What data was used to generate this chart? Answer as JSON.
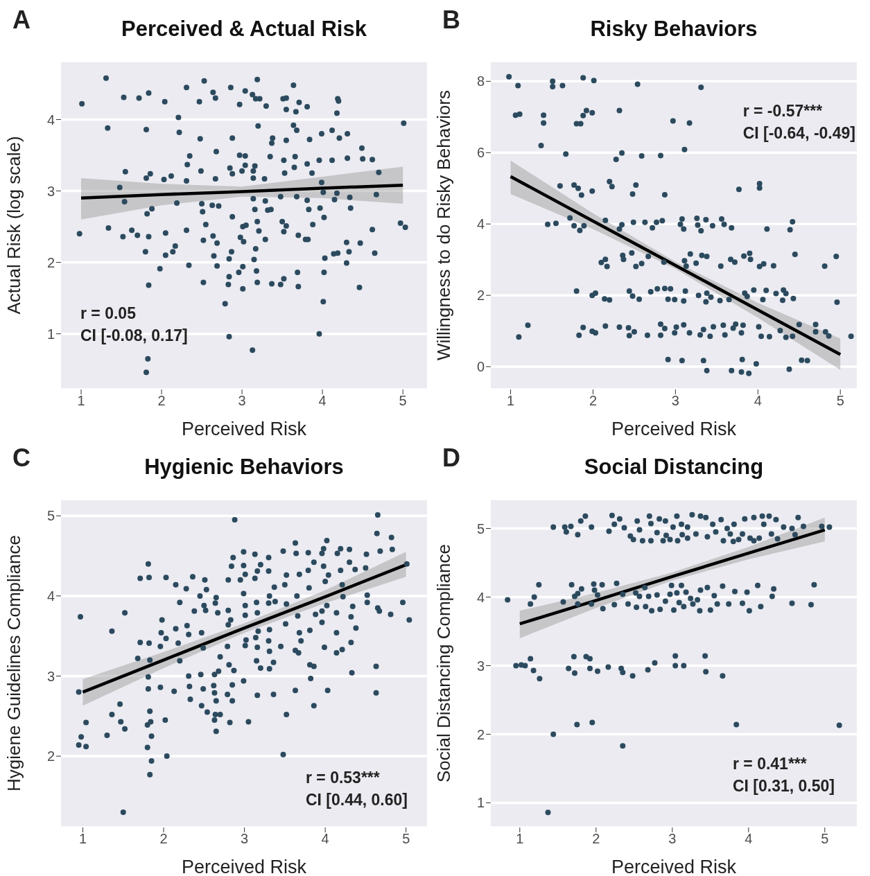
{
  "chart_data": [
    {
      "type": "scatter",
      "title": "Perceived & Actual Risk",
      "xlabel": "Perceived Risk",
      "ylabel": "Actual Risk (log scale)",
      "annotations": [
        "A",
        "r = 0.05",
        "CI [-0.08, 0.17]"
      ],
      "xlim": [
        0.75,
        5.3
      ],
      "xticks": [
        1,
        2,
        3,
        4,
        5
      ],
      "ylim": [
        0.22,
        4.82
      ],
      "yticks": [
        1,
        2,
        3,
        4
      ],
      "grid": "y",
      "series": [
        {
          "marker": "circle",
          "color": "#2c4a5e",
          "x": [
            1.01,
            0.98,
            1.31,
            1.33,
            1.34,
            1.53,
            1.55,
            1.54,
            1.48,
            1.63,
            1.72,
            1.7,
            1.52,
            1.81,
            1.84,
            1.81,
            1.86,
            1.82,
            1.84,
            1.8,
            1.84,
            1.83,
            1.81,
            1.88,
            2.04,
            2.03,
            2.05,
            2.05,
            1.98,
            2.12,
            2.14,
            2.17,
            2.21,
            2.22,
            2.19,
            2.31,
            2.32,
            2.35,
            2.31,
            2.31,
            2.34,
            2.47,
            2.48,
            2.49,
            2.5,
            2.51,
            2.52,
            2.55,
            2.52,
            2.53,
            2.64,
            2.67,
            2.68,
            2.67,
            2.63,
            2.71,
            2.64,
            2.69,
            2.65,
            2.69,
            2.79,
            2.84,
            2.86,
            2.88,
            2.85,
            2.88,
            2.88,
            2.87,
            2.84,
            2.84,
            2.83,
            2.97,
            2.97,
            3.04,
            3.04,
            3.04,
            3.0,
            3.01,
            3.05,
            2.98,
            3.02,
            3.01,
            2.96,
            3.01,
            3.13,
            3.19,
            3.17,
            3.22,
            3.2,
            3.14,
            3.14,
            3.16,
            3.14,
            3.16,
            3.19,
            3.21,
            3.17,
            3.15,
            3.18,
            3.19,
            3.13,
            3.3,
            3.38,
            3.37,
            3.35,
            3.28,
            3.29,
            3.32,
            3.36,
            3.29,
            3.37,
            3.51,
            3.55,
            3.55,
            3.55,
            3.52,
            3.53,
            3.48,
            3.5,
            3.55,
            3.52,
            3.52,
            3.48,
            3.64,
            3.64,
            3.67,
            3.68,
            3.66,
            3.65,
            3.68,
            3.7,
            3.69,
            3.7,
            3.71,
            3.81,
            3.84,
            3.81,
            3.87,
            3.81,
            3.83,
            3.88,
            3.79,
            3.82,
            3.99,
            3.96,
            3.97,
            3.99,
            4.02,
            4.01,
            4.03,
            4.02,
            4.01,
            3.96,
            4.18,
            4.19,
            4.2,
            4.12,
            4.21,
            4.12,
            4.18,
            4.15,
            4.14,
            4.19,
            4.31,
            4.31,
            4.35,
            4.34,
            4.3,
            4.33,
            4.3,
            4.49,
            4.5,
            4.47,
            4.46,
            4.62,
            4.67,
            4.62,
            4.65,
            4.7,
            5.01,
            4.97,
            5.03
          ],
          "values": [
            4.22,
            2.4,
            4.58,
            3.88,
            2.48,
            4.31,
            3.27,
            2.85,
            3.05,
            2.45,
            4.3,
            2.38,
            2.36,
            3.86,
            4.37,
            3.18,
            3.24,
            2.68,
            2.36,
            2.15,
            1.68,
            0.65,
            0.46,
            2.75,
            4.25,
            3.16,
            2.41,
            2.1,
            1.91,
            3.21,
            2.15,
            2.23,
            4.03,
            3.82,
            2.83,
            4.45,
            3.37,
            3.49,
            3.14,
            2.45,
            1.96,
            4.25,
            3.73,
            3.28,
            2.82,
            2.71,
            2.31,
            2.53,
            1.72,
            4.54,
            4.38,
            4.3,
            3.55,
            3.17,
            2.8,
            2.79,
            2.37,
            2.27,
            2.09,
            1.95,
            1.42,
            0.96,
            4.45,
            3.74,
            3.32,
            3.24,
            2.64,
            2.15,
            2.05,
            1.8,
            1.69,
            4.21,
            3.5,
            4.4,
            3.49,
            3.36,
            3.28,
            2.5,
            2.52,
            2.35,
            2.29,
            1.94,
            1.86,
            1.63,
            4.35,
            4.56,
            4.29,
            4.29,
            3.91,
            3.28,
            3.18,
            3.35,
            2.89,
            2.74,
            2.57,
            2.44,
            2.19,
            2.04,
            1.88,
            1.72,
            0.77,
            4.19,
            3.74,
            3.67,
            3.48,
            3.17,
            2.86,
            2.73,
            2.74,
            2.32,
            1.7,
            4.29,
            4.3,
            4.14,
            3.71,
            3.43,
            3.25,
            2.92,
            2.57,
            2.51,
            2.43,
            1.77,
            1.69,
            4.48,
            3.92,
            4.11,
            3.85,
            3.48,
            3.33,
            2.92,
            2.38,
            1.86,
            1.66,
            4.24,
            4.18,
            3.72,
            3.38,
            3.25,
            2.87,
            2.74,
            2.53,
            2.32,
            2.32,
            3.8,
            3.43,
            2.76,
            3.12,
            2.63,
            2.98,
            2.06,
            1.86,
            1.45,
            1.0,
            4.09,
            4.29,
            4.26,
            3.85,
            3.74,
            3.43,
            2.97,
            2.88,
            2.12,
            2.13,
            3.8,
            3.46,
            2.76,
            2.91,
            2.28,
            2.15,
            1.99,
            3.6,
            3.45,
            2.27,
            1.65,
            3.44,
            2.95,
            2.46,
            2.13,
            3.26,
            3.95,
            2.55,
            2.49
          ]
        },
        {
          "type": "line",
          "color": "#000000",
          "x": [
            1,
            2,
            3,
            4,
            5
          ],
          "values": [
            2.9,
            2.95,
            2.99,
            3.04,
            3.08
          ],
          "lower": [
            2.6,
            2.8,
            2.92,
            2.9,
            2.82
          ],
          "upper": [
            3.18,
            3.1,
            3.06,
            3.2,
            3.34
          ]
        }
      ]
    },
    {
      "type": "scatter",
      "title": "Risky Behaviors",
      "xlabel": "Perceived Risk",
      "ylabel": "Willingness to do Risky Behaviors",
      "annotations": [
        "B",
        "r = -0.57***",
        "CI [-0.64, -0.49]"
      ],
      "xlim": [
        0.76,
        5.2
      ],
      "xticks": [
        1,
        2,
        3,
        4,
        5
      ],
      "ylim": [
        -0.64,
        8.57
      ],
      "yticks": [
        0,
        2,
        4,
        6,
        8
      ],
      "grid": "y",
      "series": [
        {
          "marker": "circle",
          "color": "#2c4a5e",
          "x": [
            0.98,
            1.09,
            1.06,
            1.11,
            1.1,
            1.21,
            1.37,
            1.4,
            1.4,
            1.51,
            1.51,
            1.63,
            1.67,
            1.6,
            1.45,
            1.55,
            1.72,
            1.77,
            1.84,
            1.89,
            1.77,
            1.82,
            1.86,
            1.8,
            1.85,
            1.88,
            1.92,
            1.88,
            2.01,
            1.99,
            1.99,
            1.8,
            1.88,
            1.83,
            1.99,
            2.03,
            1.99,
            2.03,
            2.15,
            2.1,
            2.15,
            2.17,
            2.14,
            2.2,
            2.2,
            2.23,
            2.15,
            2.28,
            2.35,
            2.32,
            2.32,
            2.35,
            2.32,
            2.36,
            2.37,
            2.44,
            2.43,
            2.44,
            2.48,
            2.52,
            2.49,
            2.54,
            2.59,
            2.47,
            2.52,
            2.48,
            2.56,
            2.5,
            2.63,
            2.67,
            2.59,
            2.66,
            2.72,
            2.77,
            2.84,
            2.7,
            2.78,
            2.87,
            2.82,
            2.87,
            2.86,
            2.91,
            2.82,
            2.87,
            2.82,
            2.91,
            2.97,
            2.94,
            2.99,
            3.01,
            2.99,
            3.06,
            3.08,
            3.1,
            3.11,
            3.17,
            3.11,
            3.13,
            3.12,
            3.1,
            3.1,
            3.17,
            3.08,
            3.26,
            3.27,
            3.31,
            3.37,
            3.45,
            3.18,
            3.25,
            3.31,
            3.32,
            3.38,
            3.28,
            3.37,
            3.38,
            3.34,
            3.3,
            3.42,
            3.34,
            3.38,
            3.56,
            3.59,
            3.68,
            3.55,
            3.67,
            3.72,
            3.83,
            3.9,
            3.91,
            3.43,
            3.54,
            3.65,
            3.84,
            3.87,
            3.46,
            3.58,
            3.6,
            3.7,
            3.73,
            3.8,
            3.82,
            3.68,
            3.8,
            3.81,
            3.89,
            3.77,
            4.02,
            4.02,
            3.95,
            4.06,
            4.1,
            4.02,
            4.07,
            4.19,
            4.11,
            3.98,
            4.01,
            4.04,
            4.14,
            4.22,
            4.31,
            4.3,
            4.43,
            4.34,
            4.42,
            4.39,
            4.45,
            4.38,
            4.27,
            4.34,
            4.42,
            4.5,
            4.53,
            4.6,
            4.7,
            4.7,
            4.81,
            4.82,
            4.86,
            4.95,
            4.96,
            5.13
          ],
          "values": [
            8.13,
            7.88,
            7.05,
            7.08,
            0.83,
            1.16,
            6.2,
            7.05,
            6.83,
            8.0,
            7.85,
            7.88,
            5.96,
            5.07,
            3.99,
            4.02,
            4.17,
            3.95,
            3.82,
            3.95,
            5.09,
            5.0,
            4.81,
            6.81,
            6.81,
            7.04,
            7.18,
            8.1,
            8.02,
            7.12,
            4.92,
            2.12,
            1.1,
            0.88,
            2.0,
            2.06,
            0.99,
            0.95,
            1.14,
            2.92,
            3.01,
            2.81,
            1.9,
            1.87,
            5.19,
            5.05,
            4.1,
            5.81,
            5.99,
            7.18,
            1.11,
            3.98,
            3.86,
            3.12,
            3.01,
            2.12,
            1.09,
            0.87,
            4.84,
            5.09,
            4.05,
            7.92,
            5.91,
            3.19,
            2.81,
            1.98,
            1.89,
            0.98,
            4.05,
            3.09,
            2.89,
            0.88,
            3.89,
            4.05,
            4.09,
            2.1,
            2.18,
            2.19,
            5.92,
            4.82,
            2.93,
            1.89,
            1.19,
            1.07,
            0.88,
            0.2,
            6.89,
            2.18,
            1.88,
            1.11,
            0.95,
            3.99,
            4.14,
            3.86,
            6.09,
            6.83,
            2.97,
            2.82,
            2.12,
            1.84,
            1.17,
            0.95,
            0.17,
            4.16,
            3.97,
            3.81,
            4.12,
            3.95,
            3.16,
            2.9,
            7.83,
            3.12,
            3.09,
            2.0,
            1.82,
            2.06,
            1.04,
            0.89,
            0.85,
            0.17,
            -0.11,
            4.14,
            3.99,
            3.89,
            2.82,
            3.01,
            2.93,
            3.1,
            3.18,
            3.01,
            1.95,
            1.85,
            1.88,
            2.06,
            1.97,
            1.12,
            1.16,
            0.89,
            1.08,
            1.19,
            0.95,
            1.16,
            -0.11,
            -0.15,
            0.2,
            -0.19,
            4.97,
            5.13,
            5.01,
            2.15,
            1.88,
            2.14,
            2.81,
            2.88,
            2.83,
            3.86,
            0.08,
            1.12,
            0.85,
            0.84,
            2.05,
            2.15,
            1.86,
            1.91,
            2.05,
            4.06,
            3.84,
            3.15,
            -0.07,
            1.01,
            0.82,
            0.85,
            1.18,
            0.18,
            0.17,
            1.18,
            0.98,
            2.82,
            0.98,
            0.86,
            3.09,
            1.81,
            0.85
          ]
        },
        {
          "type": "line",
          "color": "#000000",
          "x": [
            1,
            2,
            3,
            4,
            5
          ],
          "values": [
            5.33,
            4.08,
            2.84,
            1.59,
            0.34
          ],
          "lower": [
            4.84,
            3.86,
            2.74,
            1.37,
            -0.09
          ],
          "upper": [
            5.78,
            4.3,
            2.94,
            1.79,
            0.79
          ]
        }
      ]
    },
    {
      "type": "scatter",
      "title": "Hygienic Behaviors",
      "xlabel": "Perceived Risk",
      "ylabel": "Hygiene Guidelines Compliance",
      "annotations": [
        "C",
        "r = 0.53***",
        "CI [0.44, 0.60]"
      ],
      "xlim": [
        0.73,
        5.26
      ],
      "xticks": [
        1,
        2,
        3,
        4,
        5
      ],
      "ylim": [
        1.11,
        5.21
      ],
      "yticks": [
        2,
        3,
        4,
        5
      ],
      "grid": "y",
      "series": [
        {
          "marker": "circle",
          "color": "#2c4a5e",
          "x": [
            0.97,
            0.95,
            0.98,
            0.95,
            1.04,
            1.04,
            1.3,
            1.36,
            1.36,
            1.46,
            1.47,
            1.52,
            1.52,
            1.5,
            1.71,
            1.68,
            1.71,
            1.81,
            1.82,
            1.82,
            1.83,
            1.81,
            1.81,
            1.83,
            1.84,
            1.8,
            1.8,
            1.85,
            1.85,
            1.83,
            1.96,
            1.98,
            1.97,
            2.03,
            1.96,
            2.02,
            2.04,
            2.03,
            2.15,
            2.15,
            2.18,
            2.2,
            2.2,
            2.13,
            2.28,
            2.29,
            2.31,
            2.36,
            2.31,
            2.32,
            2.33,
            2.38,
            2.46,
            2.49,
            2.47,
            2.47,
            2.49,
            2.45,
            2.51,
            2.5,
            2.52,
            2.54,
            2.53,
            2.62,
            2.63,
            2.64,
            2.65,
            2.67,
            2.7,
            2.68,
            2.63,
            2.65,
            2.64,
            2.7,
            2.63,
            2.65,
            2.8,
            2.8,
            2.79,
            2.8,
            2.81,
            2.79,
            2.82,
            2.83,
            2.85,
            2.85,
            2.87,
            2.84,
            2.86,
            2.88,
            2.95,
            2.99,
            2.99,
            3.01,
            2.99,
            3.01,
            3.01,
            3.02,
            3.01,
            2.99,
            3.05,
            3.13,
            3.13,
            3.16,
            3.2,
            3.15,
            3.16,
            3.17,
            3.14,
            3.16,
            3.15,
            3.2,
            3.16,
            3.3,
            3.3,
            3.31,
            3.3,
            3.31,
            3.3,
            3.31,
            3.31,
            3.36,
            3.36,
            3.37,
            3.38,
            3.48,
            3.45,
            3.48,
            3.52,
            3.5,
            3.52,
            3.51,
            3.52,
            3.63,
            3.64,
            3.68,
            3.65,
            3.66,
            3.68,
            3.63,
            3.67,
            3.63,
            3.7,
            3.79,
            3.79,
            3.8,
            3.81,
            3.81,
            3.86,
            3.82,
            3.86,
            3.86,
            3.88,
            3.96,
            3.98,
            4.02,
            3.98,
            4.0,
            4.02,
            3.96,
            3.96,
            3.99,
            4.04,
            4.03,
            4.15,
            4.19,
            4.19,
            4.21,
            4.22,
            4.14,
            4.14,
            4.14,
            4.21,
            4.3,
            4.3,
            4.34,
            4.32,
            4.32,
            4.33,
            4.37,
            4.38,
            4.51,
            4.5,
            4.52,
            4.52,
            4.65,
            4.64,
            4.68,
            4.65,
            4.67,
            4.63,
            4.63,
            4.82,
            4.83,
            4.81,
            4.96,
            5.01,
            5.04
          ],
          "values": [
            3.74,
            2.8,
            2.24,
            2.14,
            2.12,
            2.42,
            2.26,
            3.56,
            2.52,
            2.65,
            2.43,
            2.34,
            3.79,
            1.3,
            3.42,
            3.22,
            4.22,
            4.4,
            4.23,
            3.41,
            3.2,
            2.99,
            2.84,
            2.56,
            2.43,
            2.39,
            2.11,
            2.25,
            1.94,
            1.77,
            3.37,
            3.7,
            3.54,
            3.47,
            2.86,
            2.45,
            2.0,
            4.23,
            4.14,
            3.59,
            3.41,
            3.92,
            3.19,
            2.81,
            4.09,
            3.63,
            3.52,
            4.24,
            3.0,
            2.87,
            2.71,
            3.81,
            3.02,
            2.84,
            2.63,
            3.54,
            3.35,
            4.0,
            4.2,
            3.88,
            3.82,
            2.55,
            4.08,
            2.88,
            3.02,
            3.91,
            3.98,
            3.79,
            3.24,
            3.06,
            2.79,
            2.69,
            2.52,
            2.52,
            2.45,
            2.31,
            4.2,
            3.82,
            3.37,
            3.64,
            3.14,
            2.77,
            2.42,
            3.7,
            2.89,
            2.69,
            3.07,
            4.37,
            4.48,
            4.95,
            4.2,
            4.55,
            4.38,
            4.27,
            4.03,
            3.88,
            3.76,
            3.45,
            3.38,
            2.94,
            2.43,
            4.52,
            4.22,
            4.31,
            4.39,
            3.92,
            3.79,
            3.56,
            3.48,
            3.36,
            3.19,
            3.1,
            2.76,
            4.48,
            4.31,
            4.0,
            3.91,
            3.58,
            3.44,
            3.31,
            3.09,
            3.17,
            2.77,
            4.11,
            3.93,
            4.56,
            3.37,
            2.02,
            4.26,
            4.14,
            3.9,
            3.65,
            2.52,
            4.66,
            4.53,
            4.27,
            4.0,
            3.75,
            3.54,
            3.32,
            3.29,
            2.82,
            3.44,
            4.54,
            4.32,
            4.1,
            3.57,
            3.14,
            3.12,
            2.97,
            2.63,
            4.42,
            3.77,
            4.53,
            4.59,
            4.69,
            4.37,
            4.18,
            3.88,
            3.81,
            3.67,
            3.36,
            4.26,
            2.82,
            4.53,
            4.59,
            4.32,
            4.14,
            3.99,
            3.79,
            3.54,
            3.29,
            3.33,
            4.58,
            4.42,
            3.87,
            3.74,
            3.42,
            3.04,
            4.33,
            3.6,
            4.52,
            4.35,
            4.01,
            3.92,
            5.01,
            4.78,
            4.56,
            3.85,
            3.81,
            3.12,
            2.79,
            4.73,
            4.58,
            3.77,
            3.92,
            4.4,
            3.7
          ]
        },
        {
          "type": "line",
          "color": "#000000",
          "x": [
            1,
            2,
            3,
            4,
            5
          ],
          "values": [
            2.8,
            3.2,
            3.6,
            3.99,
            4.39
          ],
          "lower": [
            2.63,
            3.1,
            3.54,
            3.91,
            4.24
          ],
          "upper": [
            2.96,
            3.3,
            3.66,
            4.07,
            4.55
          ]
        }
      ]
    },
    {
      "type": "scatter",
      "title": "Social Distancing",
      "xlabel": "Perceived Risk",
      "ylabel": "Social Distancing Compliance",
      "annotations": [
        "D",
        "r = 0.41***",
        "CI [0.31, 0.50]"
      ],
      "xlim": [
        0.62,
        5.42
      ],
      "xticks": [
        1,
        2,
        3,
        4,
        5
      ],
      "ylim": [
        0.64,
        5.43
      ],
      "yticks": [
        1,
        2,
        3,
        4,
        5
      ],
      "grid": "y",
      "series": [
        {
          "marker": "circle",
          "color": "#2c4a5e",
          "x": [
            0.84,
            0.95,
            1.02,
            1.07,
            1.14,
            1.18,
            1.26,
            1.14,
            1.19,
            1.25,
            1.37,
            1.44,
            1.44,
            1.59,
            1.61,
            1.67,
            1.76,
            1.8,
            1.86,
            1.94,
            1.57,
            1.68,
            1.72,
            1.76,
            1.81,
            1.76,
            1.94,
            1.97,
            1.98,
            2.02,
            2.08,
            2.09,
            1.64,
            1.71,
            1.72,
            1.87,
            1.92,
            1.92,
            2.02,
            2.16,
            1.75,
            1.95,
            2.17,
            2.21,
            2.24,
            2.31,
            2.37,
            2.27,
            2.24,
            2.35,
            2.42,
            2.33,
            2.35,
            2.35,
            2.48,
            2.68,
            2.77,
            2.45,
            2.49,
            2.54,
            2.57,
            2.61,
            2.7,
            2.72,
            2.72,
            2.83,
            2.8,
            2.88,
            2.91,
            2.92,
            2.97,
            3.01,
            3.06,
            3.07,
            3.12,
            3.13,
            3.2,
            3.2,
            3.26,
            3.31,
            3.37,
            3.44,
            3.46,
            3.53,
            3.57,
            3.64,
            3.67,
            3.72,
            3.76,
            3.81,
            3.8,
            3.87,
            3.92,
            3.95,
            4.02,
            4.07,
            4.07,
            4.14,
            4.18,
            4.2,
            4.27,
            4.3,
            4.36,
            4.38,
            4.46,
            4.57,
            4.61,
            4.65,
            4.72,
            4.96,
            5.06,
            2.52,
            2.53,
            2.57,
            2.64,
            2.69,
            2.65,
            2.73,
            2.8,
            2.84,
            2.91,
            2.99,
            2.97,
            3.02,
            3.06,
            3.09,
            3.12,
            3.15,
            3.18,
            3.24,
            3.27,
            3.33,
            3.36,
            3.37,
            3.46,
            3.5,
            3.55,
            3.59,
            3.66,
            3.74,
            3.82,
            3.92,
            3.98,
            4.01,
            4.12,
            4.16,
            4.31,
            4.33,
            4.57,
            4.82,
            4.86,
            3.04,
            3.04,
            3.15,
            3.43,
            3.44,
            3.66,
            3.84,
            5.19
          ],
          "values": [
            3.96,
            3.0,
            3.01,
            3.0,
            3.1,
            2.93,
            2.81,
            3.9,
            4.0,
            4.18,
            0.86,
            2.0,
            5.02,
            5.02,
            4.95,
            5.03,
            4.91,
            5.11,
            5.18,
            5.02,
            3.93,
            4.18,
            4.01,
            4.05,
            4.12,
            3.9,
            3.9,
            4.19,
            4.1,
            4.03,
            4.18,
            3.83,
            2.96,
            3.13,
            2.89,
            3.13,
            3.1,
            2.96,
            2.92,
            2.98,
            2.14,
            2.17,
            4.96,
            5.19,
            5.06,
            5.14,
            5.01,
            4.2,
            3.89,
            4.04,
            3.9,
            2.96,
            2.9,
            1.83,
            2.85,
            2.94,
            3.04,
            4.89,
            4.84,
            5.11,
            4.98,
            4.82,
            5.18,
            5.07,
            4.82,
            5.14,
            4.94,
            4.82,
            5.11,
            4.9,
            4.84,
            5.02,
            5.18,
            4.82,
            5.06,
            4.91,
            4.86,
            5.02,
            5.2,
            4.92,
            5.18,
            5.16,
            4.88,
            5.06,
            4.95,
            5.13,
            4.82,
            5.0,
            4.92,
            5.06,
            4.81,
            4.84,
            4.92,
            5.14,
            4.86,
            4.82,
            5.16,
            4.86,
            5.18,
            5.06,
            5.18,
            4.92,
            5.13,
            4.85,
            5.02,
            5.0,
            4.91,
            5.16,
            5.03,
            5.03,
            5.02,
            4.06,
            3.85,
            4.01,
            4.14,
            4.01,
            3.86,
            3.8,
            4.03,
            3.82,
            3.94,
            4.17,
            4.04,
            3.81,
            4.06,
            3.92,
            4.17,
            3.86,
            4.07,
            3.98,
            3.9,
            3.96,
            3.8,
            4.1,
            4.14,
            3.81,
            4.02,
            3.9,
            4.16,
            3.9,
            4.08,
            3.91,
            4.07,
            3.8,
            4.17,
            3.86,
            4.01,
            4.12,
            3.91,
            3.89,
            4.18,
            3.14,
            3.0,
            3.0,
            3.14,
            2.91,
            2.85,
            2.14,
            2.13
          ]
        },
        {
          "type": "line",
          "color": "#000000",
          "x": [
            1,
            2,
            3,
            4,
            5
          ],
          "values": [
            3.61,
            3.95,
            4.3,
            4.64,
            4.98
          ],
          "lower": [
            3.4,
            3.84,
            4.24,
            4.55,
            4.81
          ],
          "upper": [
            3.8,
            4.06,
            4.36,
            4.73,
            5.16
          ]
        }
      ]
    }
  ]
}
